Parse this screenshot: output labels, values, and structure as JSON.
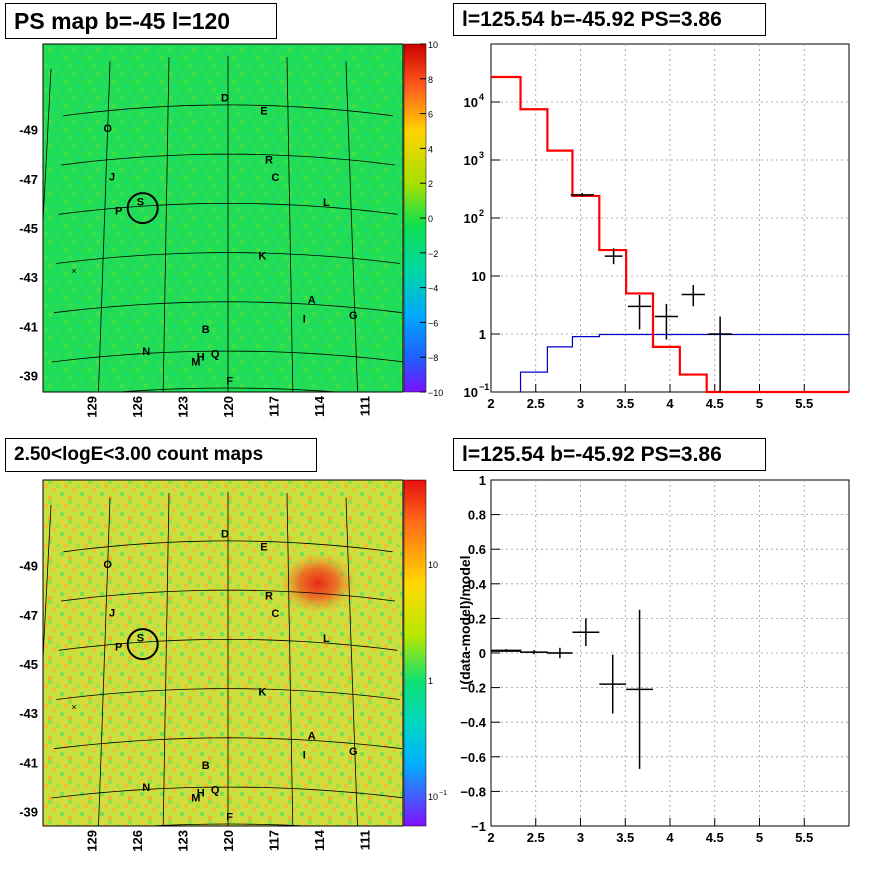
{
  "panels": {
    "map_title": "PS map b=-45 l=120",
    "spec_title": "l=125.54 b=-45.92 PS=3.86",
    "count_title": "2.50<logE<3.00 count maps",
    "ratio_title": "l=125.54 b=-45.92 PS=3.86"
  },
  "colors": {
    "data": "#000000",
    "model": "#ff0000",
    "background": "#0000cc",
    "map_bg": "#22dd55",
    "count_bg": "#c8e040",
    "hotspot": "#e84020"
  },
  "maps": {
    "b_ticks": [
      "-39",
      "-41",
      "-43",
      "-45",
      "-47",
      "-49"
    ],
    "l_ticks": [
      "129",
      "126",
      "123",
      "120",
      "117",
      "114",
      "111"
    ],
    "sources": [
      {
        "id": "F",
        "l": 119.9,
        "b": -38.8
      },
      {
        "id": "M",
        "l": 122.0,
        "b": -39.6
      },
      {
        "id": "H",
        "l": 121.7,
        "b": -39.8
      },
      {
        "id": "Q",
        "l": 120.8,
        "b": -39.9
      },
      {
        "id": "N",
        "l": 125.1,
        "b": -40.1
      },
      {
        "id": "B",
        "l": 121.4,
        "b": -40.9
      },
      {
        "id": "I",
        "l": 115.2,
        "b": -41.4
      },
      {
        "id": "G",
        "l": 112.1,
        "b": -41.7
      },
      {
        "id": "A",
        "l": 114.7,
        "b": -42.2
      },
      {
        "id": "K",
        "l": 117.8,
        "b": -43.9
      },
      {
        "id": "P",
        "l": 127.1,
        "b": -45.9
      },
      {
        "id": "S",
        "l": 125.7,
        "b": -46.2
      },
      {
        "id": "L",
        "l": 113.6,
        "b": -46.2
      },
      {
        "id": "J",
        "l": 127.6,
        "b": -47.3
      },
      {
        "id": "C",
        "l": 116.9,
        "b": -47.1
      },
      {
        "id": "R",
        "l": 117.3,
        "b": -47.8
      },
      {
        "id": "O",
        "l": 128.0,
        "b": -49.3
      },
      {
        "id": "E",
        "l": 117.6,
        "b": -49.8
      },
      {
        "id": "D",
        "l": 120.2,
        "b": -50.3
      }
    ],
    "roi_marker": {
      "l": 125.54,
      "b": -45.92
    }
  },
  "colorbars": {
    "map_ticks": [
      "10",
      "8",
      "6",
      "4",
      "2",
      "0",
      "−2",
      "−4",
      "−6",
      "−8",
      "−10"
    ],
    "count_ticks": {
      "ten": "10",
      "one": "1",
      "tenth_base": "10",
      "tenth_exp": "−1"
    }
  },
  "chart_data": [
    {
      "type": "line",
      "name": "spectrum",
      "xlim": [
        2,
        6
      ],
      "ylim": [
        0.1,
        100000
      ],
      "log_y": true,
      "grid": true,
      "x_ticks": [
        "2",
        "2.5",
        "3",
        "3.5",
        "4",
        "4.5",
        "5",
        "5.5"
      ],
      "y_ticks": [
        {
          "base": "10",
          "exp": "4"
        },
        {
          "base": "10",
          "exp": "3"
        },
        {
          "base": "10",
          "exp": "2"
        },
        {
          "base": "10",
          "exp": ""
        },
        {
          "base": "1",
          "exp": ""
        },
        {
          "base": "10",
          "exp": "−1"
        }
      ],
      "model_edges": [
        2.0,
        2.33,
        2.63,
        2.91,
        3.21,
        3.51,
        3.81,
        4.11,
        4.41,
        6.0
      ],
      "model_values": [
        27000,
        7500,
        1450,
        240,
        28,
        5.0,
        0.6,
        0.2,
        0.1
      ],
      "background_edges": [
        2.33,
        2.63,
        2.91,
        3.21,
        6.0
      ],
      "background_values": [
        0.22,
        0.6,
        0.9,
        0.98,
        1.0
      ],
      "data_points": [
        {
          "x": 3.02,
          "xerr": 0.13,
          "y": 250,
          "ylo": 230,
          "yhi": 270
        },
        {
          "x": 3.37,
          "xerr": 0.1,
          "y": 22,
          "ylo": 16,
          "yhi": 30
        },
        {
          "x": 3.66,
          "xerr": 0.13,
          "y": 3,
          "ylo": 1.2,
          "yhi": 4.7
        },
        {
          "x": 3.96,
          "xerr": 0.13,
          "y": 2,
          "ylo": 0.8,
          "yhi": 3.3
        },
        {
          "x": 4.26,
          "xerr": 0.13,
          "y": 4.8,
          "ylo": 3,
          "yhi": 7
        },
        {
          "x": 4.56,
          "xerr": 0.13,
          "y": 1,
          "ylo": 0.1,
          "yhi": 2
        }
      ]
    },
    {
      "type": "scatter",
      "name": "residuals",
      "ylabel": "(data-model)/model",
      "xlim": [
        2,
        6
      ],
      "ylim": [
        -1,
        1
      ],
      "grid": true,
      "x_ticks": [
        "2",
        "2.5",
        "3",
        "3.5",
        "4",
        "4.5",
        "5",
        "5.5"
      ],
      "y_ticks": [
        "1",
        "0.8",
        "0.6",
        "0.4",
        "0.2",
        "0",
        "−0.2",
        "−0.4",
        "−0.6",
        "−0.8",
        "−1"
      ],
      "model_edges": [
        2.0,
        2.33,
        2.63,
        2.91
      ],
      "model_values": [
        0.01,
        0.005,
        0.0
      ],
      "data_points": [
        {
          "x": 2.17,
          "xerr": 0.17,
          "y": 0.015,
          "err": 0.008
        },
        {
          "x": 2.48,
          "xerr": 0.15,
          "y": 0.005,
          "err": 0.012
        },
        {
          "x": 2.77,
          "xerr": 0.14,
          "y": 0.0,
          "err": 0.03
        },
        {
          "x": 3.06,
          "xerr": 0.15,
          "y": 0.12,
          "err": 0.08
        },
        {
          "x": 3.36,
          "xerr": 0.15,
          "y": -0.18,
          "err": 0.17
        },
        {
          "x": 3.66,
          "xerr": 0.15,
          "y": -0.21,
          "err": 0.46
        }
      ]
    }
  ]
}
